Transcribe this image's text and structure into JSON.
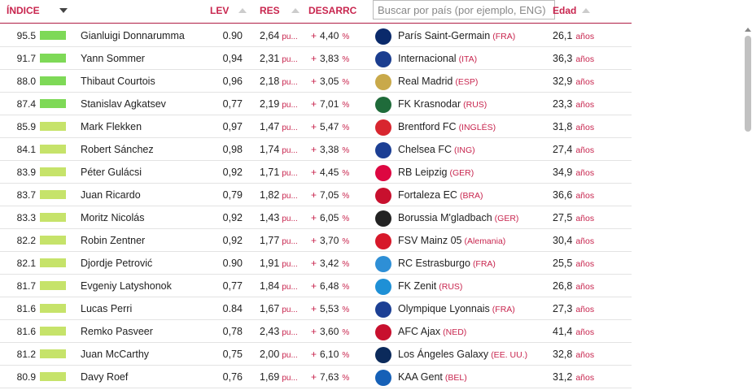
{
  "header": {
    "indice": "ÍNDICE",
    "lev": "LEV",
    "res": "RES",
    "desarrollo": "DESARRC",
    "search_placeholder": "Buscar por país (por ejemplo, ENG)",
    "edad": "Edad"
  },
  "units": {
    "res": "pu...",
    "des_sign": "+",
    "pct": "%",
    "age": "años"
  },
  "colors": {
    "accent": "#c8254e",
    "bar_high": "#7ed957",
    "bar_low": "#c6e36a"
  },
  "rows": [
    {
      "idx": "95.5",
      "bar": "high",
      "name": "Gianluigi Donnarumma",
      "lev": "0.90",
      "res": "2,64",
      "des": "4,40",
      "club": "París Saint-Germain",
      "ctry": "(FRA)",
      "age": "26,1",
      "logo_color": "#0a2a6b",
      "logo": "paris-saint-germain-logo"
    },
    {
      "idx": "91.7",
      "bar": "high",
      "name": "Yann Sommer",
      "lev": "0,94",
      "res": "2,31",
      "des": "3,83",
      "club": "Internacional",
      "ctry": "(ITA)",
      "age": "36,3",
      "logo_color": "#1a3d8f",
      "logo": "inter-logo"
    },
    {
      "idx": "88.0",
      "bar": "high",
      "name": "Thibaut Courtois",
      "lev": "0,96",
      "res": "2,18",
      "des": "3,05",
      "club": "Real Madrid",
      "ctry": "(ESP)",
      "age": "32,9",
      "logo_color": "#c9a94a",
      "logo": "real-madrid-logo"
    },
    {
      "idx": "87.4",
      "bar": "high",
      "name": "Stanislav Agkatsev",
      "lev": "0,77",
      "res": "2,19",
      "des": "7,01",
      "club": "FK Krasnodar",
      "ctry": "(RUS)",
      "age": "23,3",
      "logo_color": "#1f6b3a",
      "logo": "krasnodar-logo"
    },
    {
      "idx": "85.9",
      "bar": "low",
      "name": "Mark Flekken",
      "lev": "0,97",
      "res": "1,47",
      "des": "5,47",
      "club": "Brentford FC",
      "ctry": "(INGLÉS)",
      "age": "31,8",
      "logo_color": "#d8262f",
      "logo": "brentford-logo"
    },
    {
      "idx": "84.1",
      "bar": "low",
      "name": "Robert Sánchez",
      "lev": "0,98",
      "res": "1,74",
      "des": "3,38",
      "club": "Chelsea FC",
      "ctry": "(ING)",
      "age": "27,4",
      "logo_color": "#1c3f94",
      "logo": "chelsea-logo"
    },
    {
      "idx": "83.9",
      "bar": "low",
      "name": "Péter Gulácsi",
      "lev": "0,92",
      "res": "1,71",
      "des": "4,45",
      "club": "RB Leipzig",
      "ctry": "(GER)",
      "age": "34,9",
      "logo_color": "#dd0741",
      "logo": "rb-leipzig-logo"
    },
    {
      "idx": "83.7",
      "bar": "low",
      "name": "Juan Ricardo",
      "lev": "0,79",
      "res": "1,82",
      "des": "7,05",
      "club": "Fortaleza EC",
      "ctry": "(BRA)",
      "age": "36,6",
      "logo_color": "#c8102e",
      "logo": "fortaleza-logo"
    },
    {
      "idx": "83.3",
      "bar": "low",
      "name": "Moritz Nicolás",
      "lev": "0,92",
      "res": "1,43",
      "des": "6,05",
      "club": "Borussia M'gladbach",
      "ctry": "(GER)",
      "age": "27,5",
      "logo_color": "#222222",
      "logo": "gladbach-logo"
    },
    {
      "idx": "82.2",
      "bar": "low",
      "name": "Robin Zentner",
      "lev": "0,92",
      "res": "1,77",
      "des": "3,70",
      "club": "FSV Mainz 05",
      "ctry": "(Alemania)",
      "age": "30,4",
      "logo_color": "#d7182a",
      "logo": "mainz-logo"
    },
    {
      "idx": "82.1",
      "bar": "low",
      "name": "Djordje Petrović",
      "lev": "0.90",
      "res": "1,91",
      "des": "3,42",
      "club": "RC Estrasburgo",
      "ctry": "(FRA)",
      "age": "25,5",
      "logo_color": "#2e8fd6",
      "logo": "strasbourg-logo"
    },
    {
      "idx": "81.7",
      "bar": "low",
      "name": "Evgeniy Latyshonok",
      "lev": "0,77",
      "res": "1,84",
      "des": "6,48",
      "club": "FK Zenit",
      "ctry": "(RUS)",
      "age": "26,8",
      "logo_color": "#1e90d6",
      "logo": "zenit-logo"
    },
    {
      "idx": "81.6",
      "bar": "low",
      "name": "Lucas Perri",
      "lev": "0.84",
      "res": "1,67",
      "des": "5,53",
      "club": "Olympique Lyonnais",
      "ctry": "(FRA)",
      "age": "27,3",
      "logo_color": "#1c3f94",
      "logo": "lyon-logo"
    },
    {
      "idx": "81.6",
      "bar": "low",
      "name": "Remko Pasveer",
      "lev": "0,78",
      "res": "2,43",
      "des": "3,60",
      "club": "AFC Ajax",
      "ctry": "(NED)",
      "age": "41,4",
      "logo_color": "#c8102e",
      "logo": "ajax-logo"
    },
    {
      "idx": "81.2",
      "bar": "low",
      "name": "Juan McCarthy",
      "lev": "0,75",
      "res": "2,00",
      "des": "6,10",
      "club": "Los Ángeles Galaxy",
      "ctry": "(EE. UU.)",
      "age": "32,8",
      "logo_color": "#0b2a5b",
      "logo": "la-galaxy-logo"
    },
    {
      "idx": "80.9",
      "bar": "low",
      "name": "Davy Roef",
      "lev": "0,76",
      "res": "1,69",
      "des": "7,63",
      "club": "KAA Gent",
      "ctry": "(BEL)",
      "age": "31,2",
      "logo_color": "#1560b7",
      "logo": "gent-logo"
    }
  ]
}
